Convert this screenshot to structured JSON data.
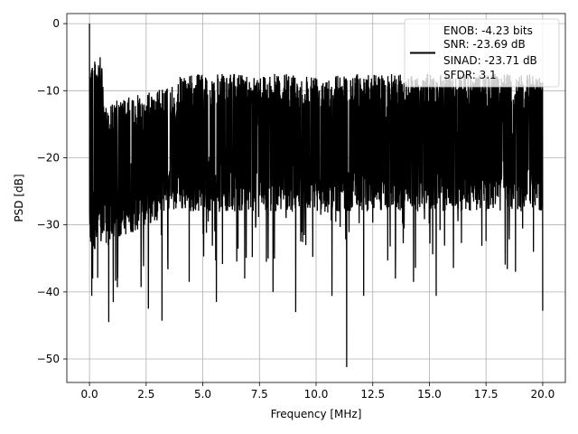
{
  "chart_data": {
    "type": "line",
    "title": "",
    "xlabel": "Frequency [MHz]",
    "ylabel": "PSD [dB]",
    "xlim": [
      -1.0,
      21.0
    ],
    "ylim": [
      -53.5,
      1.5
    ],
    "xticks": [
      0.0,
      2.5,
      5.0,
      7.5,
      10.0,
      12.5,
      15.0,
      17.5,
      20.0
    ],
    "xtick_labels": [
      "0.0",
      "2.5",
      "5.0",
      "7.5",
      "10.0",
      "12.5",
      "15.0",
      "17.5",
      "20.0"
    ],
    "yticks": [
      0,
      -10,
      -20,
      -30,
      -40,
      -50
    ],
    "ytick_labels": [
      "0",
      "−10",
      "−20",
      "−30",
      "−40",
      "−50"
    ],
    "grid": true,
    "legend": {
      "placement": "top-right",
      "entries": [
        "ENOB: -4.23 bits",
        "SNR: -23.69 dB",
        "SINAD: -23.71 dB",
        "SFDR: 3.1"
      ]
    },
    "series": [
      {
        "color": "#000000",
        "x": [
          0.0,
          0.02,
          0.05,
          0.1,
          0.15,
          0.2,
          0.5,
          0.85,
          1.05,
          1.3,
          2.6,
          3.2,
          4.4,
          5.6,
          6.85,
          8.1,
          9.1,
          10.7,
          11.35,
          12.1,
          13.5,
          14.3,
          15.3,
          18.8,
          20.0
        ],
        "y": [
          0,
          -8,
          -21,
          -40.6,
          -25,
          -15,
          -25,
          -44.5,
          -41.5,
          -28,
          -42.5,
          -44.3,
          -38.5,
          -41.5,
          -38,
          -40,
          -43,
          -40.6,
          -51.2,
          -40.6,
          -38,
          -38.5,
          -40.6,
          -37,
          -42.8
        ]
      }
    ]
  }
}
